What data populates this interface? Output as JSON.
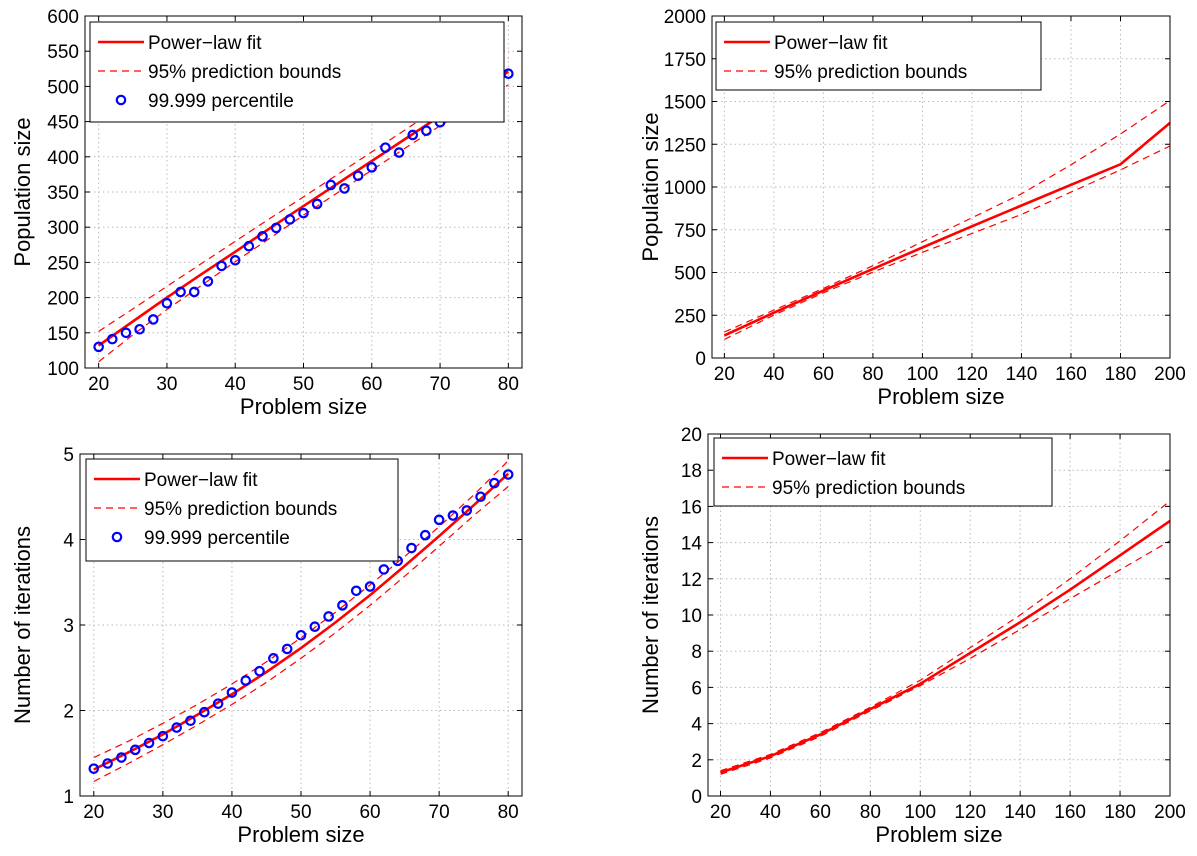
{
  "colors": {
    "fit": "#ff0000",
    "bounds": "#ff0000",
    "percentile_marker": "#0000ff",
    "grid": "#bbbbbb",
    "axes": "#000000",
    "background": "#ffffff"
  },
  "chart_data": [
    {
      "id": "population-small",
      "type": "line",
      "xlabel": "Problem size",
      "ylabel": "Population size",
      "xlim": [
        18,
        82
      ],
      "ylim": [
        100,
        600
      ],
      "xticks": [
        20,
        30,
        40,
        50,
        60,
        70,
        80
      ],
      "yticks": [
        100,
        150,
        200,
        250,
        300,
        350,
        400,
        450,
        500,
        550,
        600
      ],
      "grid": true,
      "legend_position": "top-left",
      "series": [
        {
          "name": "Power−law fit",
          "kind": "fit",
          "x": [
            20,
            25,
            30,
            35,
            40,
            45,
            50,
            55,
            60,
            65,
            70,
            75,
            80
          ],
          "y": [
            132,
            166,
            200,
            233,
            265,
            298,
            330,
            362,
            394,
            426,
            458,
            489,
            521
          ]
        },
        {
          "name": "95% prediction bounds",
          "kind": "bounds",
          "x": [
            20,
            25,
            30,
            35,
            40,
            45,
            50,
            55,
            60,
            65,
            70,
            75,
            80
          ],
          "y": [
            152,
            184,
            216,
            248,
            280,
            312,
            343,
            375,
            407,
            439,
            471,
            504,
            540
          ]
        },
        {
          "name": "",
          "kind": "bounds",
          "x": [
            20,
            25,
            30,
            35,
            40,
            45,
            50,
            55,
            60,
            65,
            70,
            75,
            80
          ],
          "y": [
            109,
            147,
            183,
            217,
            251,
            284,
            317,
            349,
            381,
            413,
            444,
            474,
            502
          ]
        },
        {
          "name": "99.999 percentile",
          "kind": "points",
          "x": [
            20,
            22,
            24,
            26,
            28,
            30,
            32,
            34,
            36,
            38,
            40,
            42,
            44,
            46,
            48,
            50,
            52,
            54,
            56,
            58,
            60,
            62,
            64,
            66,
            68,
            70,
            72,
            74,
            76,
            78,
            80
          ],
          "y": [
            130,
            141,
            150,
            155,
            169,
            192,
            208,
            208,
            223,
            245,
            253,
            273,
            287,
            299,
            311,
            320,
            333,
            360,
            355,
            373,
            385,
            413,
            406,
            431,
            437,
            449,
            467,
            470,
            512,
            528,
            518
          ]
        }
      ]
    },
    {
      "id": "population-large",
      "type": "line",
      "xlabel": "Problem size",
      "ylabel": "Population size",
      "xlim": [
        15,
        200
      ],
      "ylim": [
        0,
        2000
      ],
      "xticks": [
        20,
        40,
        60,
        80,
        100,
        120,
        140,
        160,
        180,
        200
      ],
      "yticks": [
        0,
        250,
        500,
        750,
        1000,
        1250,
        1500,
        1750,
        2000
      ],
      "grid": true,
      "legend_position": "top-left",
      "series": [
        {
          "name": "Power−law fit",
          "kind": "fit",
          "x": [
            20,
            40,
            60,
            80,
            100,
            120,
            140,
            160,
            180,
            200
          ],
          "y": [
            132,
            265,
            394,
            521,
            646,
            770,
            892,
            1013,
            1133,
            1375
          ]
        },
        {
          "name": "95% prediction bounds",
          "kind": "bounds",
          "x": [
            20,
            40,
            60,
            80,
            100,
            120,
            140,
            160,
            180,
            200
          ],
          "y": [
            152,
            280,
            407,
            540,
            680,
            820,
            960,
            1130,
            1310,
            1505
          ]
        },
        {
          "name": "",
          "kind": "bounds",
          "x": [
            20,
            40,
            60,
            80,
            100,
            120,
            140,
            160,
            180,
            200
          ],
          "y": [
            109,
            251,
            381,
            502,
            618,
            728,
            840,
            970,
            1100,
            1240
          ]
        }
      ]
    },
    {
      "id": "iterations-small",
      "type": "line",
      "xlabel": "Problem size",
      "ylabel": "Number of iterations",
      "xlim": [
        18,
        82
      ],
      "ylim": [
        1,
        5
      ],
      "xticks": [
        20,
        30,
        40,
        50,
        60,
        70,
        80
      ],
      "yticks": [
        1,
        2,
        3,
        4,
        5
      ],
      "grid": true,
      "legend_position": "top-left",
      "series": [
        {
          "name": "Power−law fit",
          "kind": "fit",
          "x": [
            20,
            25,
            30,
            35,
            40,
            45,
            50,
            55,
            60,
            65,
            70,
            75,
            80
          ],
          "y": [
            1.31,
            1.51,
            1.72,
            1.95,
            2.19,
            2.45,
            2.73,
            3.03,
            3.35,
            3.69,
            4.04,
            4.4,
            4.77
          ]
        },
        {
          "name": "95% prediction bounds",
          "kind": "bounds",
          "x": [
            20,
            25,
            30,
            35,
            40,
            45,
            50,
            55,
            60,
            65,
            70,
            75,
            80
          ],
          "y": [
            1.45,
            1.64,
            1.85,
            2.07,
            2.31,
            2.57,
            2.85,
            3.15,
            3.47,
            3.8,
            4.15,
            4.52,
            4.92
          ]
        },
        {
          "name": "",
          "kind": "bounds",
          "x": [
            20,
            25,
            30,
            35,
            40,
            45,
            50,
            55,
            60,
            65,
            70,
            75,
            80
          ],
          "y": [
            1.17,
            1.38,
            1.6,
            1.83,
            2.07,
            2.33,
            2.61,
            2.91,
            3.23,
            3.57,
            3.92,
            4.28,
            4.62
          ]
        },
        {
          "name": "99.999 percentile",
          "kind": "points",
          "x": [
            20,
            22,
            24,
            26,
            28,
            30,
            32,
            34,
            36,
            38,
            40,
            42,
            44,
            46,
            48,
            50,
            52,
            54,
            56,
            58,
            60,
            62,
            64,
            66,
            68,
            70,
            72,
            74,
            76,
            78,
            80
          ],
          "y": [
            1.32,
            1.38,
            1.45,
            1.54,
            1.62,
            1.7,
            1.8,
            1.88,
            1.98,
            2.08,
            2.21,
            2.35,
            2.46,
            2.61,
            2.72,
            2.88,
            2.98,
            3.1,
            3.23,
            3.4,
            3.45,
            3.65,
            3.75,
            3.9,
            4.05,
            4.23,
            4.28,
            4.34,
            4.5,
            4.66,
            4.76
          ]
        }
      ]
    },
    {
      "id": "iterations-large",
      "type": "line",
      "xlabel": "Problem size",
      "ylabel": "Number of iterations",
      "xlim": [
        15,
        200
      ],
      "ylim": [
        0,
        20
      ],
      "xticks": [
        20,
        40,
        60,
        80,
        100,
        120,
        140,
        160,
        180,
        200
      ],
      "yticks": [
        0,
        2,
        4,
        6,
        8,
        10,
        12,
        14,
        16,
        18,
        20
      ],
      "grid": true,
      "legend_position": "top-left",
      "series": [
        {
          "name": "Power−law fit",
          "kind": "fit",
          "x": [
            20,
            40,
            60,
            80,
            100,
            120,
            140,
            160,
            180,
            200
          ],
          "y": [
            1.3,
            2.2,
            3.4,
            4.8,
            6.2,
            7.9,
            9.6,
            11.4,
            13.3,
            15.2
          ]
        },
        {
          "name": "95% prediction bounds",
          "kind": "bounds",
          "x": [
            20,
            40,
            60,
            80,
            100,
            120,
            140,
            160,
            180,
            200
          ],
          "y": [
            1.4,
            2.3,
            3.5,
            4.9,
            6.4,
            8.2,
            10.0,
            12.0,
            14.1,
            16.3
          ]
        },
        {
          "name": "",
          "kind": "bounds",
          "x": [
            20,
            40,
            60,
            80,
            100,
            120,
            140,
            160,
            180,
            200
          ],
          "y": [
            1.2,
            2.1,
            3.3,
            4.7,
            6.1,
            7.6,
            9.2,
            10.9,
            12.5,
            14.1
          ]
        }
      ]
    }
  ]
}
